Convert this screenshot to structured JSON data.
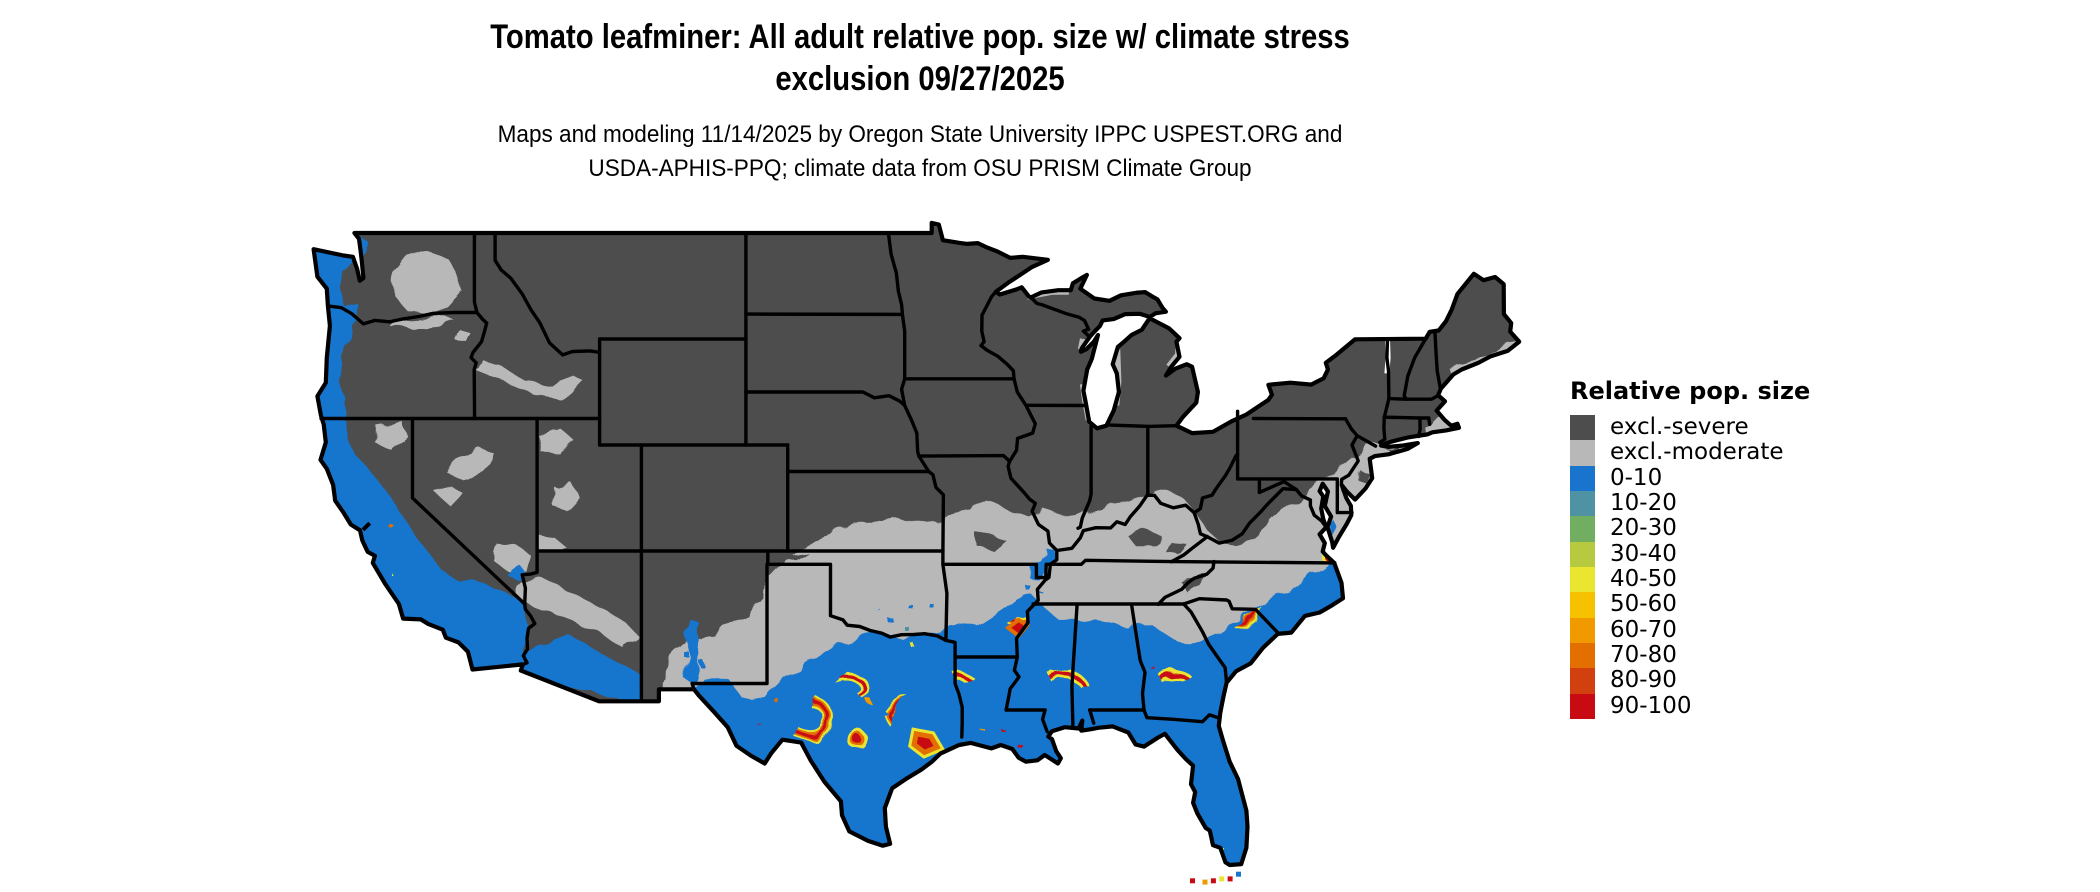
{
  "title": {
    "line1": "Tomato leafminer: All adult relative pop. size w/ climate stress",
    "line2": "exclusion 09/27/2025"
  },
  "subtitle": {
    "line1": "Maps and modeling 11/14/2025 by Oregon State University IPPC USPEST.ORG and",
    "line2": "USDA-APHIS-PPQ; climate data from OSU PRISM Climate Group"
  },
  "legend": {
    "title": "Relative pop. size",
    "items": [
      {
        "label": "excl.-severe",
        "color": "#4d4d4d"
      },
      {
        "label": "excl.-moderate",
        "color": "#b8b8b8"
      },
      {
        "label": "0-10",
        "color": "#1874cd"
      },
      {
        "label": "10-20",
        "color": "#4e92a4"
      },
      {
        "label": "20-30",
        "color": "#72ae62"
      },
      {
        "label": "30-40",
        "color": "#b6c93f"
      },
      {
        "label": "40-50",
        "color": "#eae531"
      },
      {
        "label": "50-60",
        "color": "#f6c200"
      },
      {
        "label": "60-70",
        "color": "#f09a00"
      },
      {
        "label": "70-80",
        "color": "#e26f00"
      },
      {
        "label": "80-90",
        "color": "#d24010"
      },
      {
        "label": "90-100",
        "color": "#c80b12"
      }
    ]
  },
  "map": {
    "region": "Contiguous United States",
    "border_color": "#000000",
    "water_color": "#ffffff"
  }
}
